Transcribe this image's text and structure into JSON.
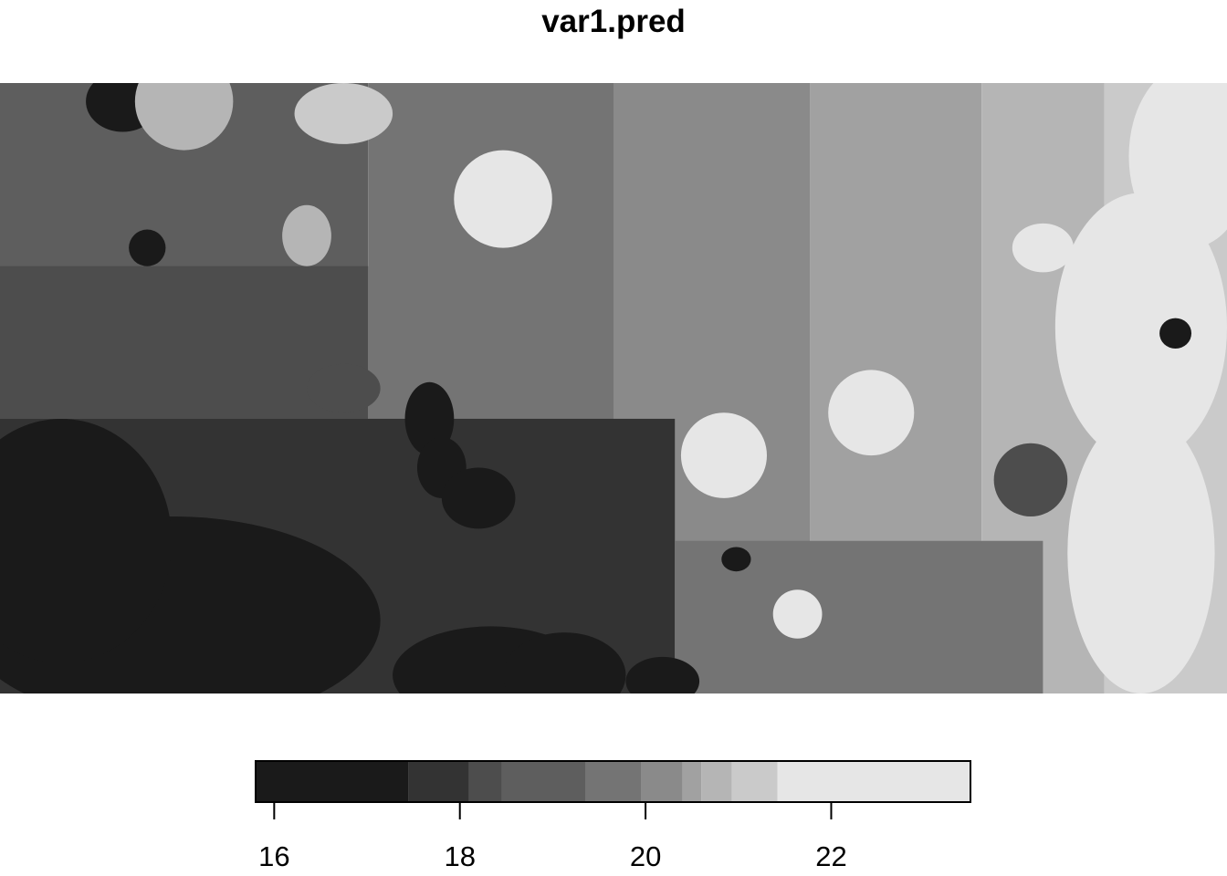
{
  "chart_data": {
    "type": "heatmap",
    "title": "var1.pred",
    "xlabel": "",
    "ylabel": "",
    "grid": false,
    "legend": {
      "placement": "bottom",
      "range": [
        15.8,
        23.5
      ],
      "breaks": [
        15.8,
        17.45,
        18.1,
        18.45,
        19.35,
        19.95,
        20.4,
        20.6,
        20.93,
        21.42,
        23.5
      ],
      "colors": [
        "#1a1a1a",
        "#333333",
        "#4d4d4d",
        "#5e5e5e",
        "#747474",
        "#8a8a8a",
        "#a1a1a1",
        "#b5b5b5",
        "#cacaca",
        "#e6e6e6"
      ],
      "ticks": [
        16,
        18,
        20,
        22
      ],
      "tick_labels": [
        "16",
        "18",
        "20",
        "22"
      ]
    },
    "regions": [
      {
        "level": 0,
        "cx": 0.14,
        "cy": 0.88,
        "rx": 0.17,
        "ry": 0.17
      },
      {
        "level": 0,
        "cx": 0.05,
        "cy": 0.75,
        "rx": 0.09,
        "ry": 0.2
      },
      {
        "level": 0,
        "cx": 0.4,
        "cy": 0.97,
        "rx": 0.08,
        "ry": 0.08
      },
      {
        "level": 0,
        "cx": 0.46,
        "cy": 0.97,
        "rx": 0.05,
        "ry": 0.07
      },
      {
        "level": 0,
        "cx": 0.35,
        "cy": 0.55,
        "rx": 0.02,
        "ry": 0.06
      },
      {
        "level": 0,
        "cx": 0.36,
        "cy": 0.63,
        "rx": 0.02,
        "ry": 0.05
      },
      {
        "level": 0,
        "cx": 0.39,
        "cy": 0.68,
        "rx": 0.03,
        "ry": 0.05
      },
      {
        "level": 0,
        "cx": 0.1,
        "cy": 0.03,
        "rx": 0.03,
        "ry": 0.05
      },
      {
        "level": 0,
        "cx": 0.12,
        "cy": 0.27,
        "rx": 0.015,
        "ry": 0.03
      },
      {
        "level": 0,
        "cx": 0.54,
        "cy": 0.98,
        "rx": 0.03,
        "ry": 0.04
      },
      {
        "level": 0,
        "cx": 0.6,
        "cy": 0.78,
        "rx": 0.012,
        "ry": 0.02
      },
      {
        "level": 2,
        "cx": 0.84,
        "cy": 0.65,
        "rx": 0.03,
        "ry": 0.06
      },
      {
        "level": 2,
        "cx": 0.28,
        "cy": 0.5,
        "rx": 0.03,
        "ry": 0.04
      },
      {
        "level": 7,
        "cx": 0.15,
        "cy": 0.03,
        "rx": 0.04,
        "ry": 0.08
      },
      {
        "level": 7,
        "cx": 0.25,
        "cy": 0.25,
        "rx": 0.02,
        "ry": 0.05
      },
      {
        "level": 8,
        "cx": 0.28,
        "cy": 0.05,
        "rx": 0.04,
        "ry": 0.05
      },
      {
        "level": 9,
        "cx": 0.41,
        "cy": 0.19,
        "rx": 0.04,
        "ry": 0.08
      },
      {
        "level": 9,
        "cx": 0.59,
        "cy": 0.61,
        "rx": 0.035,
        "ry": 0.07
      },
      {
        "level": 9,
        "cx": 0.71,
        "cy": 0.54,
        "rx": 0.035,
        "ry": 0.07
      },
      {
        "level": 9,
        "cx": 0.65,
        "cy": 0.87,
        "rx": 0.02,
        "ry": 0.04
      },
      {
        "level": 9,
        "cx": 0.93,
        "cy": 0.77,
        "rx": 0.06,
        "ry": 0.23
      },
      {
        "level": 9,
        "cx": 0.93,
        "cy": 0.4,
        "rx": 0.07,
        "ry": 0.22
      },
      {
        "level": 9,
        "cx": 0.97,
        "cy": 0.12,
        "rx": 0.05,
        "ry": 0.15
      },
      {
        "level": 9,
        "cx": 0.85,
        "cy": 0.27,
        "rx": 0.025,
        "ry": 0.04
      },
      {
        "level": 0,
        "cx": 0.958,
        "cy": 0.41,
        "rx": 0.013,
        "ry": 0.025
      }
    ]
  }
}
